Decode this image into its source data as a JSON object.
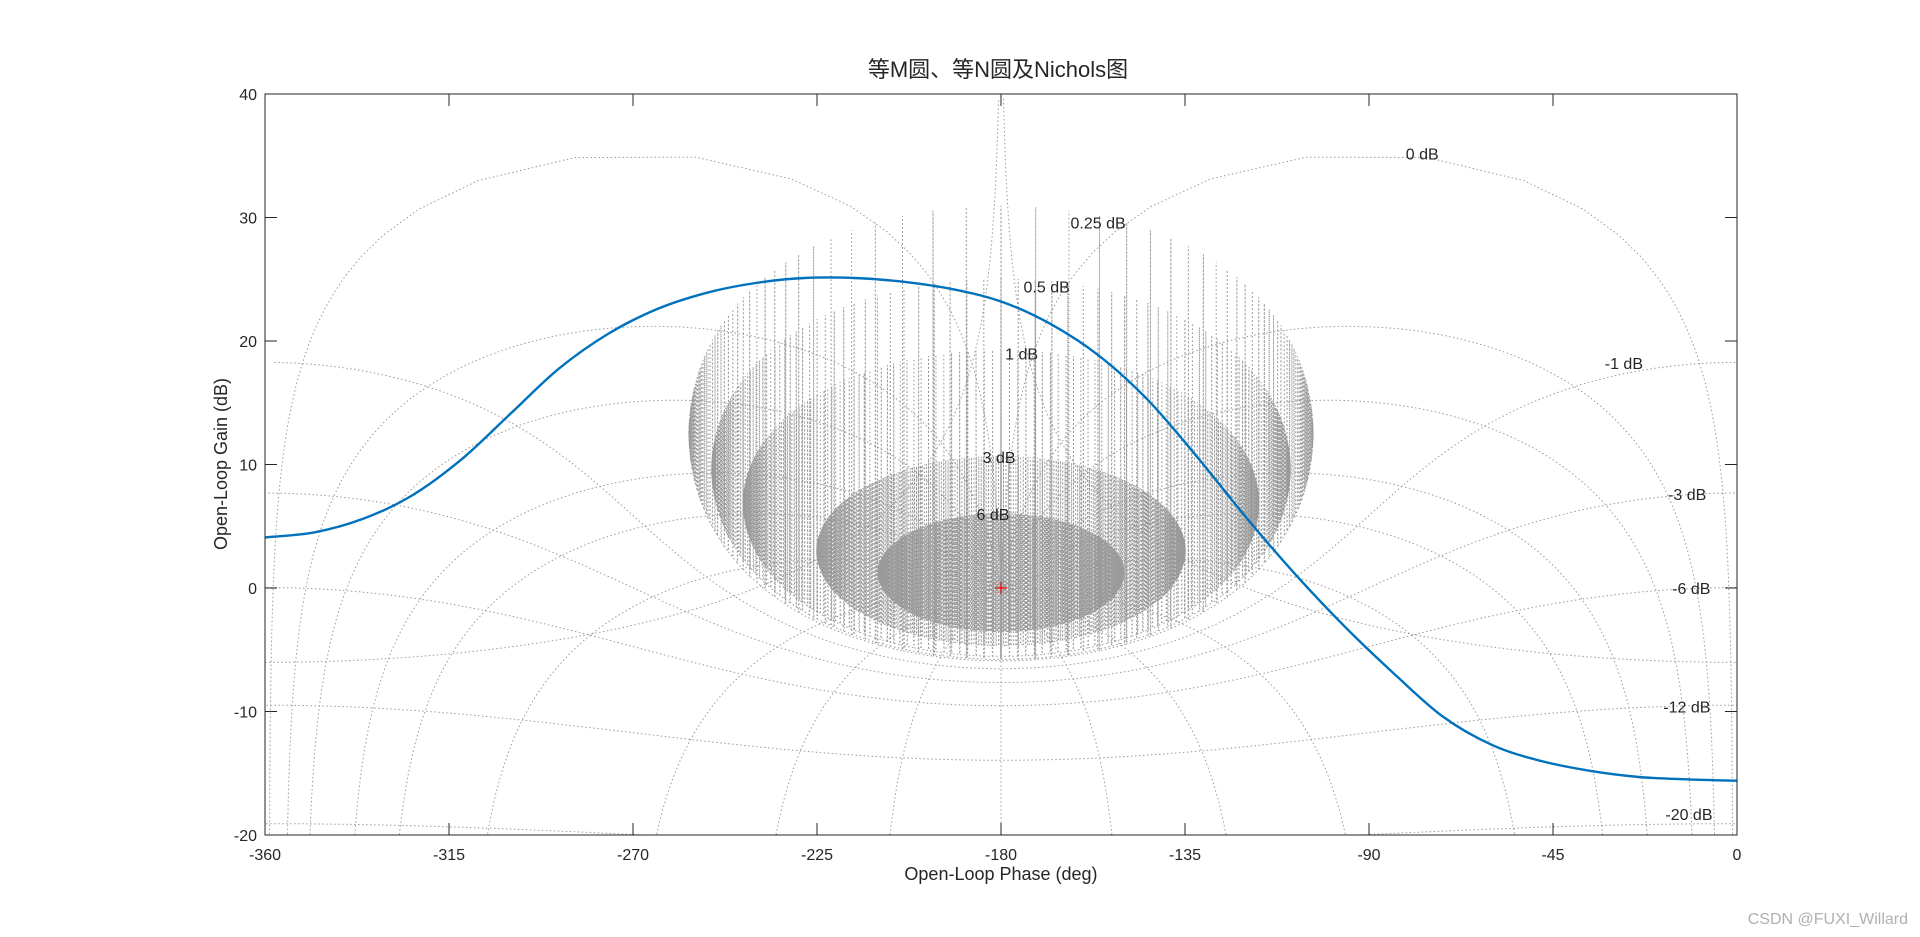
{
  "chart_data": {
    "type": "line",
    "title": "等M圆、等N圆及Nichols图",
    "xlabel": "Open-Loop Phase (deg)",
    "ylabel": "Open-Loop Gain (dB)",
    "xlim": [
      -360,
      0
    ],
    "ylim": [
      -20,
      40
    ],
    "xticks": [
      -360,
      -315,
      -270,
      -225,
      -180,
      -135,
      -90,
      -45,
      0
    ],
    "yticks": [
      -20,
      -10,
      0,
      10,
      20,
      30,
      40
    ],
    "grid": "nichols",
    "nichols_grid_labels": [
      "0 dB",
      "0.25 dB",
      "0.5 dB",
      "1 dB",
      "3 dB",
      "6 dB",
      "-1 dB",
      "-3 dB",
      "-6 dB",
      "-12 dB",
      "-20 dB"
    ],
    "critical_point": {
      "x": -180,
      "y": 0,
      "color": "#ff0000"
    },
    "series": [
      {
        "color": "#0072bd",
        "x": [
          -360,
          -348,
          -336,
          -324,
          -312,
          -300,
          -288,
          -276,
          -264,
          -252,
          -240,
          -228,
          -216,
          -204,
          -192,
          -180,
          -168,
          -156,
          -144,
          -132,
          -120,
          -108,
          -96,
          -84,
          -72,
          -60,
          -48,
          -36,
          -24,
          -12,
          0
        ],
        "y": [
          4.1,
          4.5,
          5.6,
          7.5,
          10.4,
          14.1,
          17.8,
          20.6,
          22.6,
          23.9,
          24.7,
          25.1,
          25.1,
          24.8,
          24.2,
          23.2,
          21.4,
          18.8,
          15.2,
          10.6,
          5.7,
          1.1,
          -3.1,
          -6.9,
          -10.4,
          -12.7,
          -14.0,
          -14.8,
          -15.3,
          -15.5,
          -15.6
        ]
      }
    ]
  },
  "watermark": "CSDN @FUXI_Willard"
}
